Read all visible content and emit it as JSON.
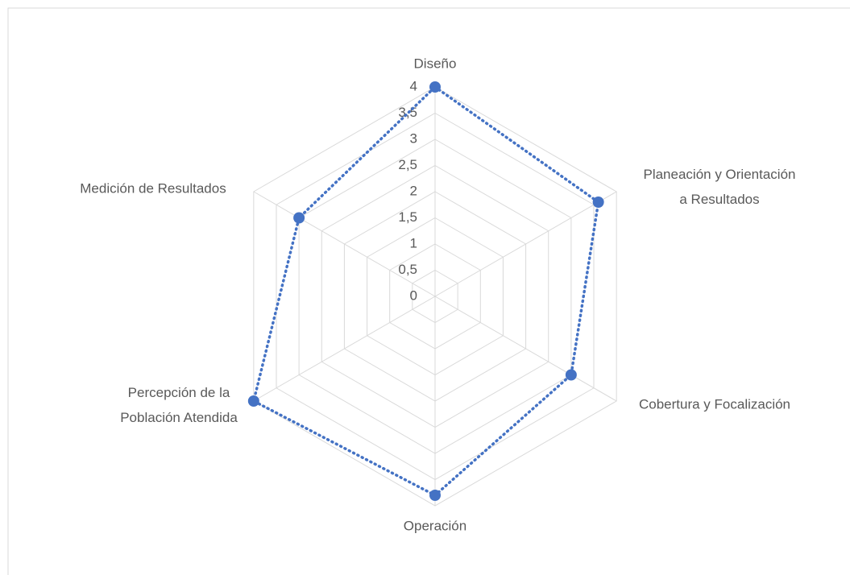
{
  "chart_data": {
    "type": "radar",
    "categories": [
      "Diseño",
      "Planeación y Orientación a Resultados",
      "Cobertura y Focalización",
      "Operación",
      "Percepción de la Población Atendida",
      "Medición de Resultados"
    ],
    "series": [
      {
        "color": "#4472c4",
        "values": [
          4,
          3.6,
          3,
          3.8,
          4,
          3
        ]
      }
    ],
    "ylim": [
      0,
      4
    ],
    "yticks": [
      0,
      {
        "value": 0.5,
        "label": "0,5"
      },
      1,
      {
        "value": 1.5,
        "label": "1,5"
      },
      2,
      {
        "value": 2.5,
        "label": "2,5"
      },
      3,
      {
        "value": 3.5,
        "label": "3,5"
      },
      4
    ],
    "grid": true
  }
}
